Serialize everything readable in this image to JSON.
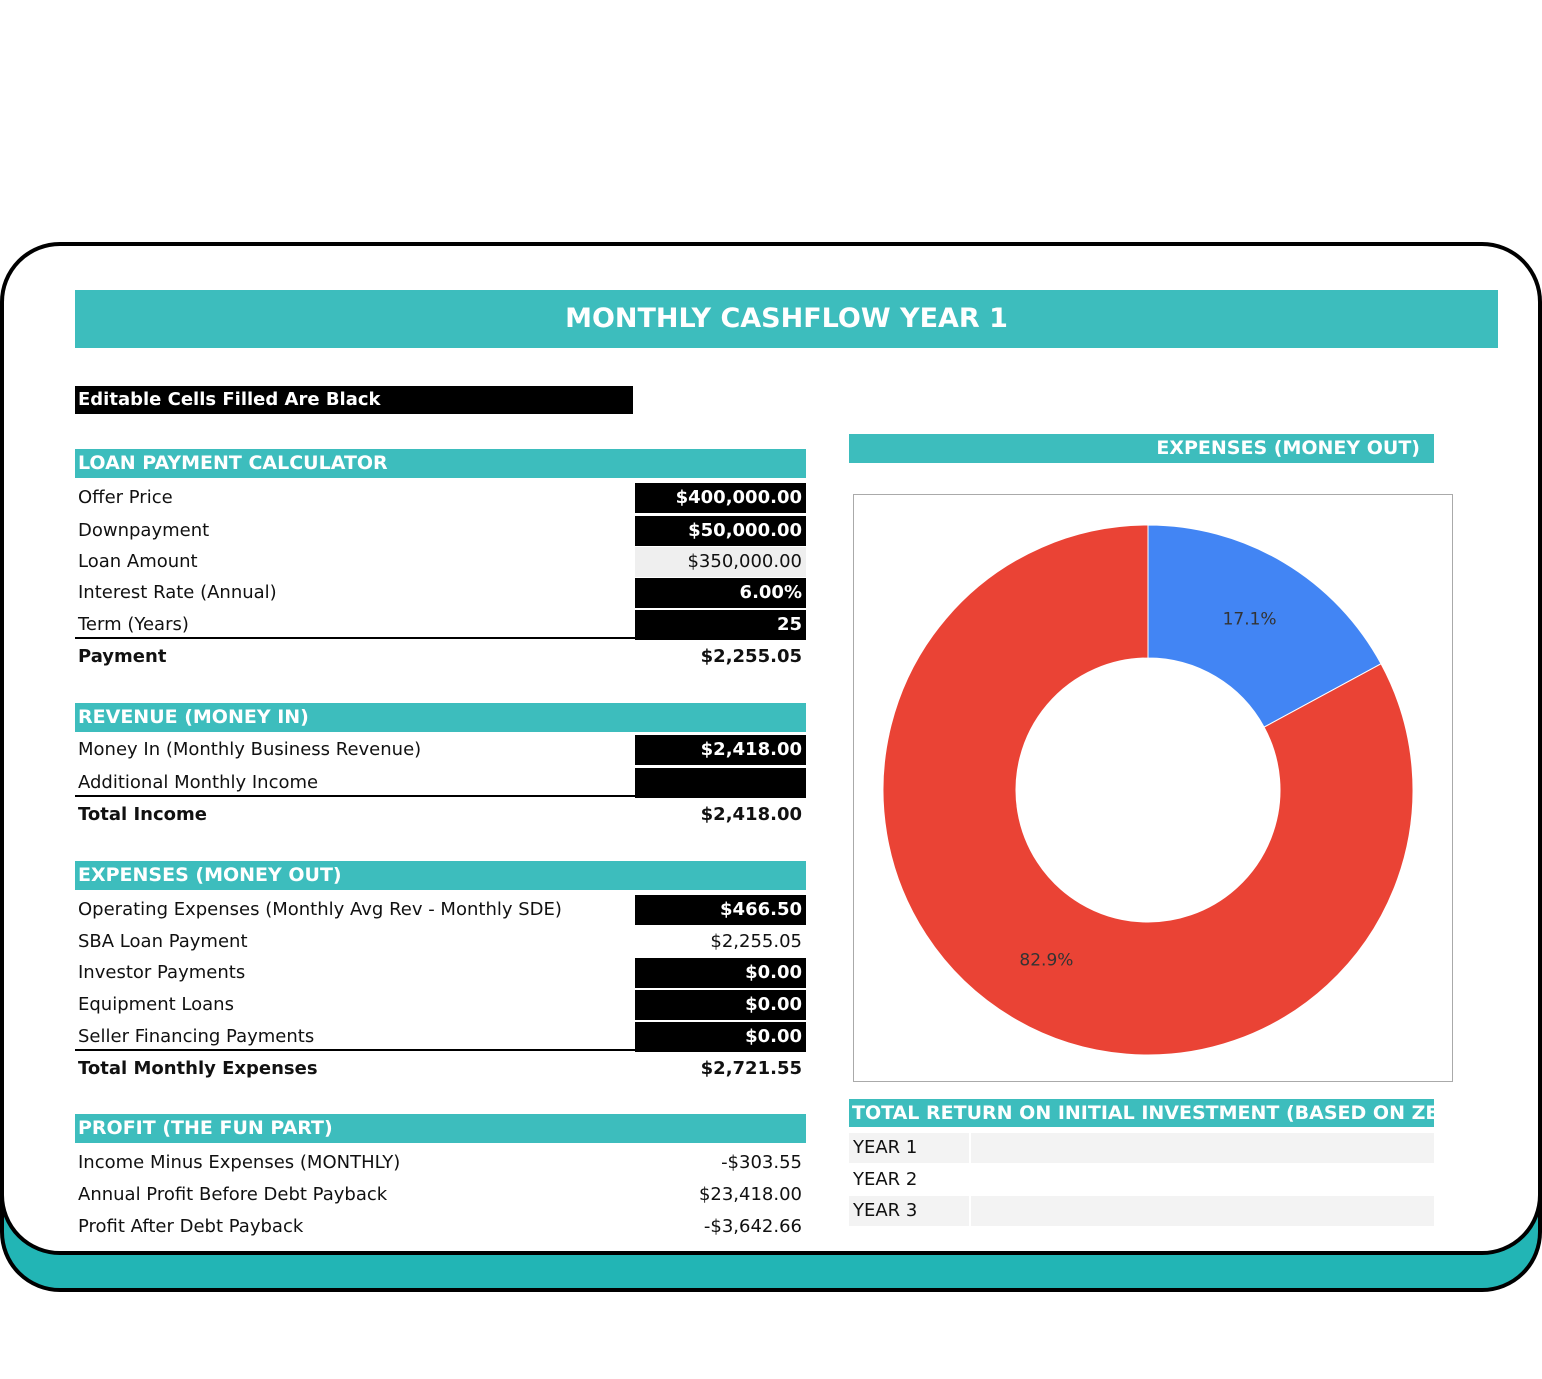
{
  "title": "MONTHLY CASHFLOW YEAR 1",
  "note": "Editable Cells Filled Are Black",
  "sections": [
    {
      "header": "LOAN PAYMENT CALCULATOR",
      "rows": [
        [
          "Offer Price",
          "$400,000.00"
        ],
        [
          "Downpayment",
          "$50,000.00"
        ],
        [
          "Loan Amount",
          "$350,000.00"
        ],
        [
          "Interest Rate (Annual)",
          "6.00%"
        ],
        [
          "Term (Years)",
          "25"
        ],
        [
          "Payment",
          "$2,255.05"
        ]
      ]
    },
    {
      "header": "REVENUE (MONEY IN)",
      "rows": [
        [
          "Money In (Monthly Business Revenue)",
          "$2,418.00"
        ],
        [
          "Additional Monthly Income"
        ],
        [
          "Total Income",
          "$2,418.00"
        ]
      ]
    },
    {
      "header": "EXPENSES (MONEY OUT)",
      "rows": [
        [
          "Operating Expenses (Monthly Avg Rev - Monthly SDE)",
          "$466.50"
        ],
        [
          "SBA Loan Payment",
          "$2,255.05"
        ],
        [
          "Investor Payments",
          "$0.00"
        ],
        [
          "Equipment Loans",
          "$0.00"
        ],
        [
          "Seller Financing Payments",
          "$0.00"
        ],
        [
          "Total Monthly Expenses",
          "$2,721.55"
        ]
      ]
    },
    {
      "header": "PROFIT (THE FUN PART)",
      "rows": [
        [
          "Income Minus Expenses (MONTHLY)",
          "-$303.55"
        ],
        [
          "Annual Profit Before Debt Payback",
          "$23,418.00"
        ],
        [
          "Profit After Debt Payback",
          "-$3,642.66"
        ]
      ]
    }
  ],
  "chart_data": {
    "type": "pie",
    "title": "EXPENSES (MONEY OUT)",
    "values": [
      17.1,
      82.9
    ],
    "value_labels": [
      "17.1%",
      "82.9%"
    ],
    "colors": [
      "#4285f4",
      "#ea4335"
    ],
    "donut": true
  },
  "roi": {
    "header": "TOTAL RETURN ON INITIAL INVESTMENT (BASED ON ZER",
    "rows": [
      "YEAR 1",
      "YEAR 2",
      "YEAR 3"
    ]
  }
}
